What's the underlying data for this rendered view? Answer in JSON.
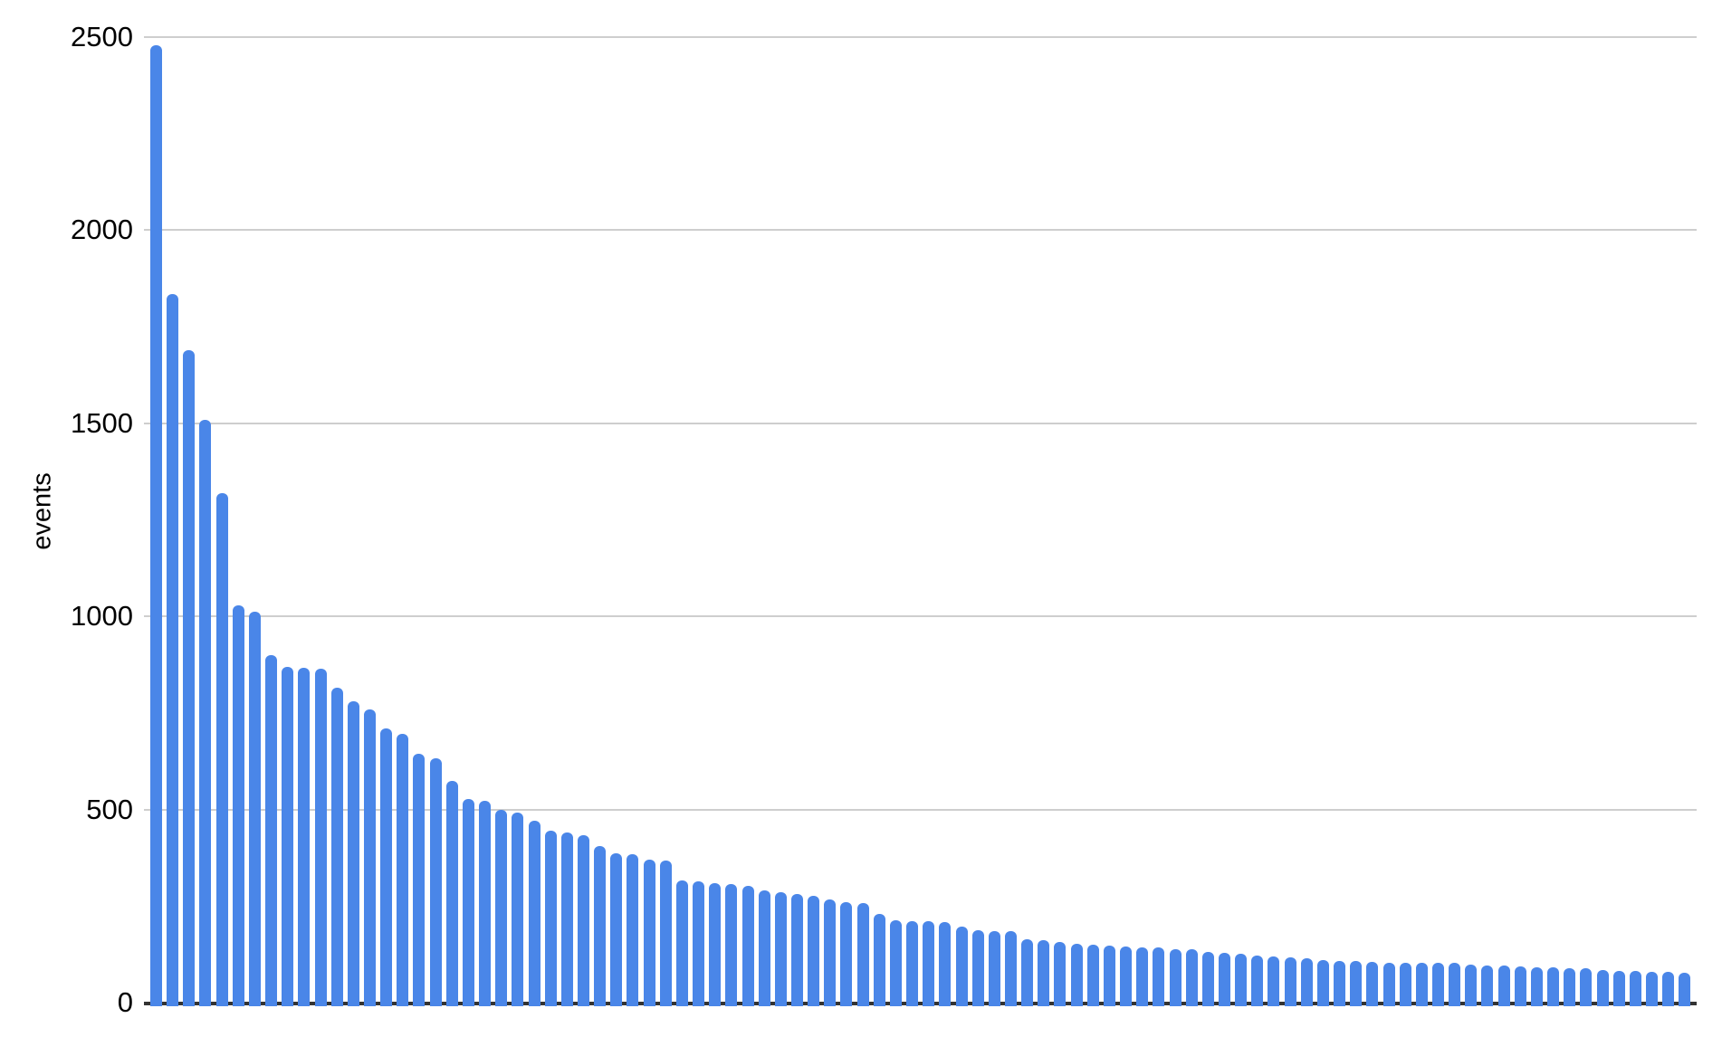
{
  "chart_data": {
    "type": "bar",
    "title": "",
    "xlabel": "",
    "ylabel": "events",
    "ylim": [
      0,
      2500
    ],
    "yticks": [
      0,
      500,
      1000,
      1500,
      2000,
      2500
    ],
    "grid": true,
    "legend_visible": false,
    "x_tick_labels_visible": false,
    "colors": {
      "bar": "#4a86e8",
      "gridline": "#cecece",
      "axis_line": "#333333",
      "text": "#000000",
      "background": "#ffffff"
    },
    "series": [
      {
        "name": "events",
        "values": [
          2480,
          1835,
          1690,
          1508,
          1320,
          1028,
          1012,
          900,
          870,
          866,
          864,
          815,
          781,
          760,
          711,
          697,
          645,
          633,
          575,
          528,
          523,
          498,
          493,
          472,
          446,
          441,
          434,
          406,
          386,
          385,
          371,
          369,
          317,
          315,
          310,
          306,
          303,
          291,
          285,
          282,
          277,
          268,
          260,
          258,
          230,
          213,
          212,
          210,
          208,
          196,
          188,
          186,
          185,
          165,
          162,
          156,
          153,
          149,
          147,
          145,
          144,
          143,
          139,
          138,
          131,
          129,
          126,
          122,
          120,
          117,
          115,
          110,
          108,
          107,
          105,
          104,
          103,
          103,
          102,
          102,
          98,
          97,
          95,
          94,
          92,
          91,
          90,
          88,
          85,
          82,
          81,
          80,
          79,
          77
        ]
      }
    ]
  }
}
